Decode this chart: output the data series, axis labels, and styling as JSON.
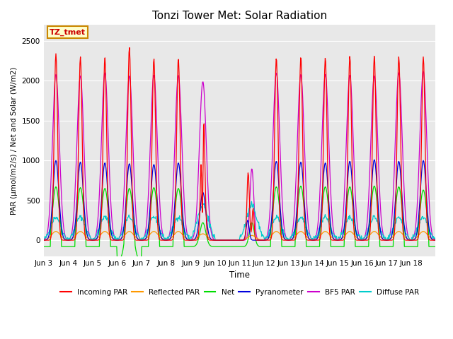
{
  "title": "Tonzi Tower Met: Solar Radiation",
  "ylabel": "PAR (μmol/m2/s) / Net and Solar (W/m2)",
  "xlabel": "Time",
  "ylim": [
    -200,
    2700
  ],
  "bg_color": "#e8e8e8",
  "annotation_text": "TZ_tmet",
  "annotation_bg": "#ffffcc",
  "annotation_border": "#cc8800",
  "series_colors": {
    "incoming_par": "#ff0000",
    "reflected_par": "#ff9900",
    "net": "#00dd00",
    "pyranometer": "#0000dd",
    "bf5_par": "#cc00cc",
    "diffuse_par": "#00cccc"
  },
  "legend_labels": [
    "Incoming PAR",
    "Reflected PAR",
    "Net",
    "Pyranometer",
    "BF5 PAR",
    "Diffuse PAR"
  ],
  "x_tick_labels": [
    "Jun 3",
    "Jun 4",
    "Jun 5",
    "Jun 6",
    "Jun 7",
    "Jun 8",
    "Jun 9",
    "Jun 10",
    "Jun 11",
    "Jun 12",
    "Jun 13",
    "Jun 14",
    "Jun 15",
    "Jun 16",
    "Jun 17",
    "Jun 18"
  ],
  "num_days": 16
}
